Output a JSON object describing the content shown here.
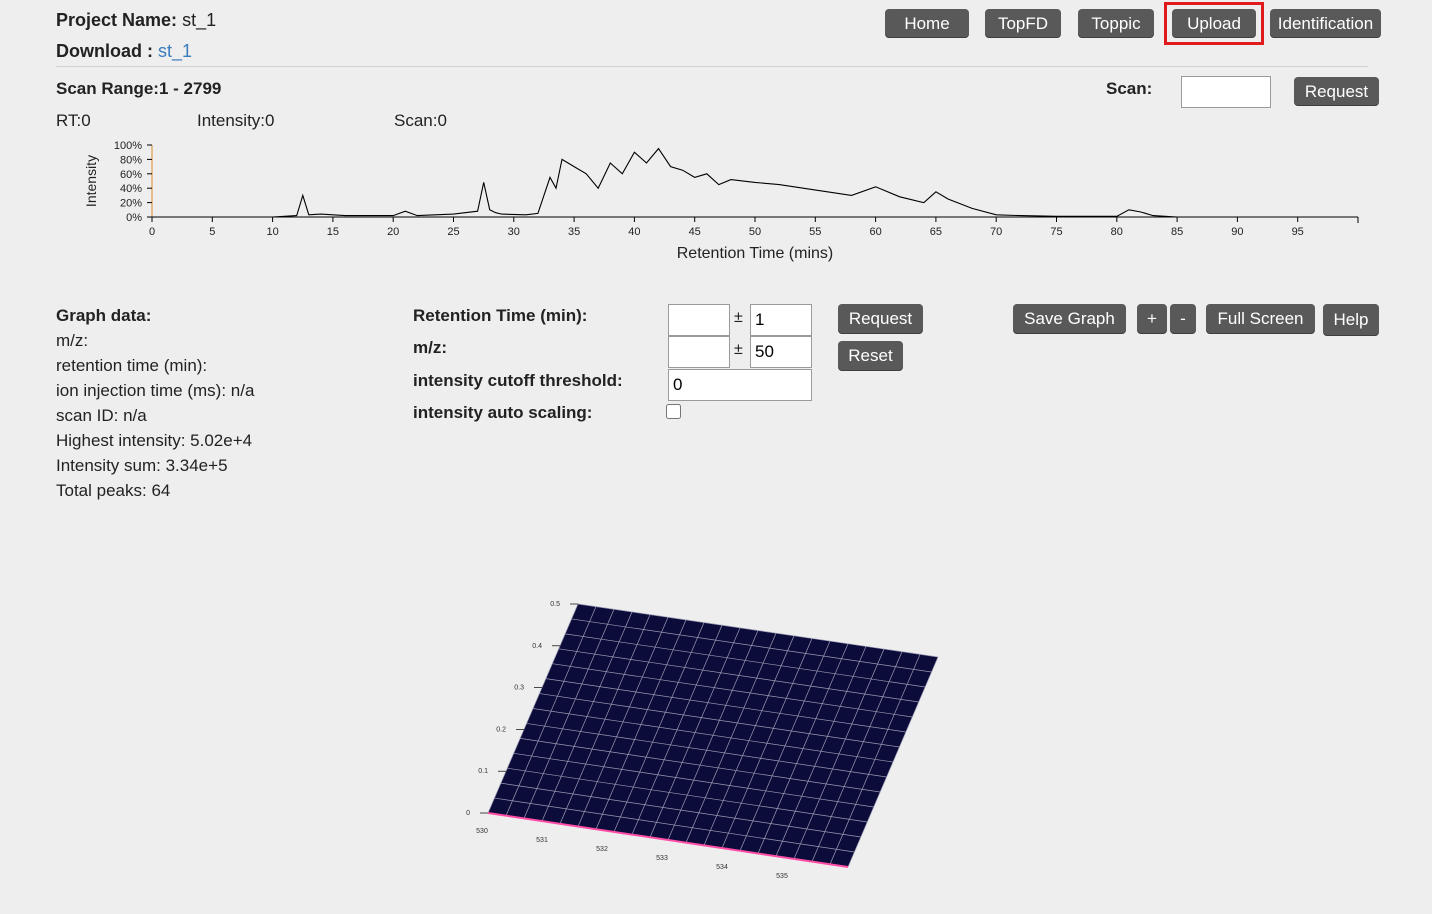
{
  "header": {
    "project_label": "Project Name:",
    "project_value": "st_1",
    "download_label": "Download :",
    "download_link": "st_1"
  },
  "nav": {
    "home": "Home",
    "topfd": "TopFD",
    "toppic": "Toppic",
    "upload": "Upload",
    "identification": "Identification",
    "highlight_color": "#e01b1b"
  },
  "scan": {
    "range_label": "Scan Range:1 - 2799",
    "scan_label": "Scan:",
    "scan_value": "",
    "request": "Request",
    "rt": "RT:0",
    "intensity": "Intensity:0",
    "scan_readout": "Scan:0"
  },
  "chart_data": {
    "type": "line",
    "ylabel": "Intensity",
    "xlabel": "Retention Time (mins)",
    "xlim": [
      0,
      100
    ],
    "ylim": [
      0,
      100
    ],
    "x_ticks": [
      "0",
      "5",
      "10",
      "15",
      "20",
      "25",
      "30",
      "35",
      "40",
      "45",
      "50",
      "55",
      "60",
      "65",
      "70",
      "75",
      "80",
      "85",
      "90",
      "95"
    ],
    "y_ticks": [
      "0%",
      "20%",
      "40%",
      "60%",
      "80%",
      "100%"
    ],
    "x": [
      0,
      10,
      12,
      12.5,
      13,
      14,
      16,
      20,
      21,
      22,
      25,
      27,
      27.5,
      28,
      28.5,
      29,
      31,
      32,
      33,
      33.5,
      34,
      35,
      36,
      37,
      38,
      39,
      40,
      41,
      42,
      43,
      44,
      45,
      46,
      47,
      48,
      50,
      52,
      54,
      56,
      58,
      60,
      62,
      64,
      65,
      66,
      68,
      70,
      72,
      75,
      80,
      81,
      82,
      83,
      85,
      95
    ],
    "y": [
      0,
      0,
      2,
      30,
      3,
      4,
      2,
      2,
      8,
      2,
      4,
      8,
      48,
      10,
      6,
      4,
      3,
      5,
      55,
      40,
      80,
      70,
      60,
      40,
      75,
      60,
      90,
      75,
      95,
      70,
      65,
      55,
      60,
      45,
      52,
      48,
      45,
      40,
      35,
      30,
      42,
      28,
      20,
      35,
      25,
      12,
      3,
      2,
      1,
      1,
      10,
      7,
      2,
      0,
      0
    ]
  },
  "graph_data": {
    "title": "Graph data:",
    "mz": "m/z:",
    "rt": "retention time (min):",
    "ion": "ion injection time (ms): n/a",
    "scan_id": "scan ID: n/a",
    "highest": "Highest intensity: 5.02e+4",
    "sum": "Intensity sum: 3.34e+5",
    "peaks": "Total peaks: 64"
  },
  "controls": {
    "rt_label": "Retention Time (min):",
    "mz_label": "m/z:",
    "cutoff_label": "intensity cutoff threshold:",
    "auto_label": "intensity auto scaling:",
    "pm": "±",
    "rt_value": "",
    "rt_tol": "1",
    "mz_value": "",
    "mz_tol": "50",
    "cutoff": "0",
    "request": "Request",
    "reset": "Reset",
    "save_graph": "Save Graph",
    "plus": "+",
    "minus": "-",
    "full_screen": "Full Screen",
    "help": "Help"
  },
  "plot3d": {
    "z_ticks": [
      "0.5",
      "0.4",
      "0.3",
      "0.2",
      "0.1",
      "0"
    ],
    "x_ticks": [
      "530",
      "531",
      "532",
      "533",
      "534",
      "535"
    ],
    "surface_color": "#0c0c3a",
    "grid_color": "#9a9ab4",
    "baseline_color": "#ff4da6"
  }
}
